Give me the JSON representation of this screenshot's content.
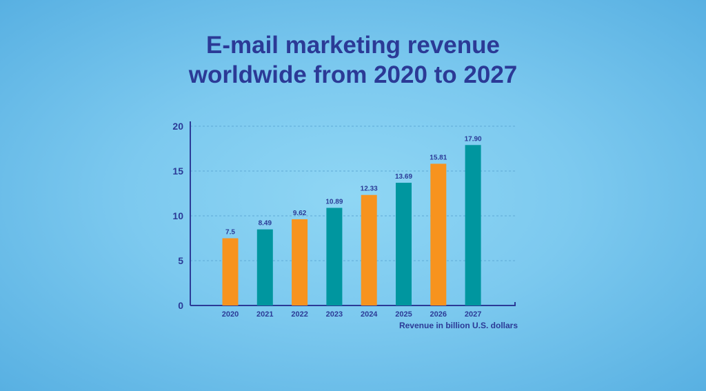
{
  "colors": {
    "accent_orange": "#f7931e",
    "accent_teal": "#00969f",
    "text": "#2b3a96"
  },
  "chart_data": {
    "type": "bar",
    "title_lines": [
      "E-mail marketing revenue",
      "worldwide from 2020 to 2027"
    ],
    "categories": [
      "2020",
      "2021",
      "2022",
      "2023",
      "2024",
      "2025",
      "2026",
      "2027"
    ],
    "values": [
      7.5,
      8.49,
      9.62,
      10.89,
      12.33,
      13.69,
      15.81,
      17.9
    ],
    "value_labels": [
      "7.5",
      "8.49",
      "9.62",
      "10.89",
      "12.33",
      "13.69",
      "15.81",
      "17.90"
    ],
    "bar_colors": [
      "orange",
      "teal",
      "orange",
      "teal",
      "orange",
      "teal",
      "orange",
      "teal"
    ],
    "xlabel": "Revenue in billion U.S. dollars",
    "ylabel": "",
    "ylim": [
      0,
      20
    ],
    "yticks": [
      0,
      5,
      10,
      15,
      20
    ],
    "grid": true
  }
}
